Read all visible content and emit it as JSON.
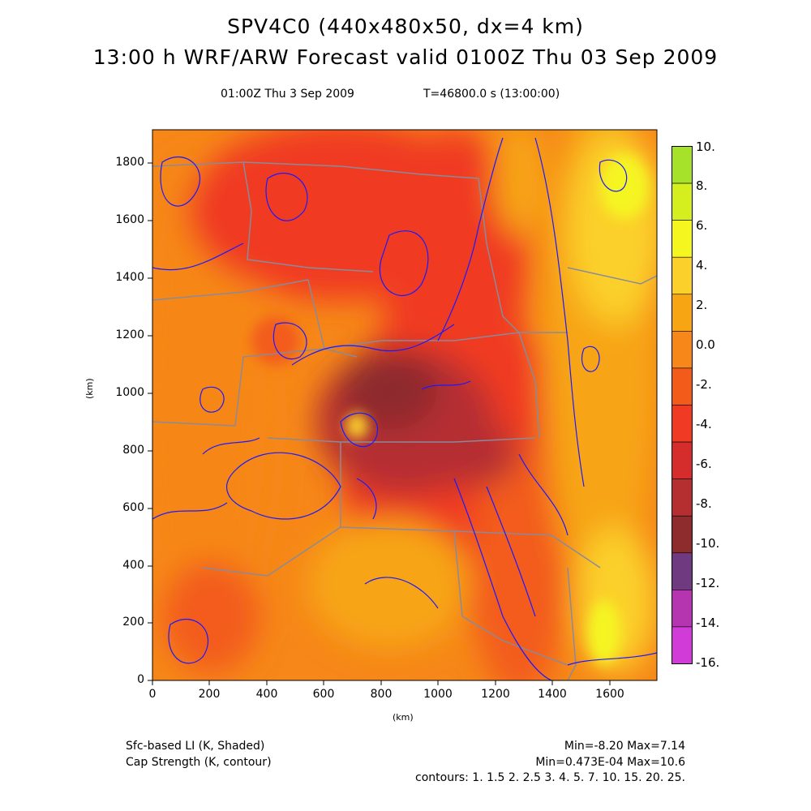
{
  "header": {
    "title1": "SPV4C0 (440x480x50, dx=4 km)",
    "title2": "13:00 h WRF/ARW Forecast valid 0100Z Thu 03 Sep 2009",
    "subtitle_left": "01:00Z Thu  3 Sep 2009",
    "subtitle_right": "T=46800.0 s (13:00:00)"
  },
  "axes": {
    "x_ticks": [
      "0",
      "200",
      "400",
      "600",
      "800",
      "1000",
      "1200",
      "1400",
      "1600"
    ],
    "y_ticks": [
      "1800",
      "1600",
      "1400",
      "1200",
      "1000",
      "800",
      "600",
      "400",
      "200",
      "0"
    ],
    "x_unit": "(km)",
    "y_unit": "(km)"
  },
  "colorbar": {
    "labels": [
      "10.",
      "8.",
      "6.",
      "4.",
      "2.",
      "0.0",
      "-2.",
      "-4.",
      "-6.",
      "-8.",
      "-10.",
      "-12.",
      "-14.",
      "-16."
    ],
    "colors": [
      "#a7e22a",
      "#d5ef1e",
      "#f5f520",
      "#fbd02a",
      "#f7a513",
      "#f68718",
      "#f35b1b",
      "#f03a23",
      "#d52c2c",
      "#b52f31",
      "#8e2b2d",
      "#6f3a80",
      "#b535b0",
      "#d13bd8"
    ]
  },
  "footer": {
    "line1_left": "Sfc-based LI (K, Shaded)",
    "line2_left": "Cap Strength (K, contour)",
    "line1_right": "Min=-8.20 Max=7.14",
    "line2_right": "Min=0.473E-04 Max=10.6",
    "line3_right": "contours: 1. 1.5 2. 2.5 3. 4. 5. 7. 10. 15. 20. 25."
  }
}
